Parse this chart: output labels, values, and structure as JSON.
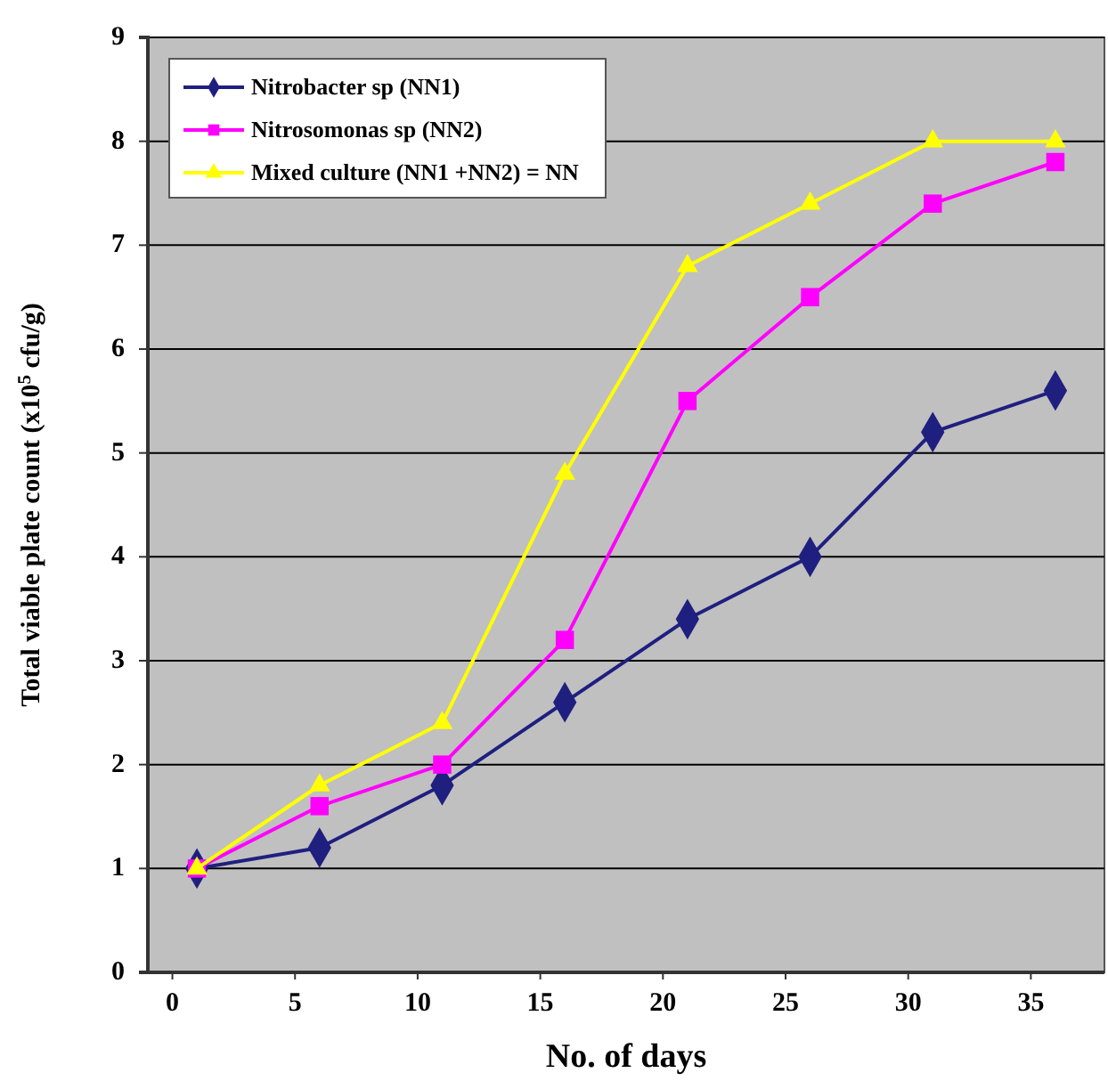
{
  "chart_data": {
    "type": "line",
    "xlabel": "No. of days",
    "ylabel": "Total viable plate count (x10$^{5}$ cfu/g)",
    "x": [
      1,
      6,
      11,
      16,
      21,
      26,
      31,
      36
    ],
    "xlim": [
      -1,
      38
    ],
    "xticks": [
      0,
      5,
      10,
      15,
      20,
      25,
      30,
      35
    ],
    "ylim": [
      0,
      9
    ],
    "yticks": [
      0,
      1,
      2,
      3,
      4,
      5,
      6,
      7,
      8,
      9
    ],
    "grid": "y",
    "legend": "top left",
    "series": [
      {
        "name": "Nitrobacter sp (NN1)",
        "color": "#1f1f80",
        "marker": "diamond",
        "values": [
          1,
          1.2,
          1.8,
          2.6,
          3.4,
          4.0,
          5.2,
          5.6
        ]
      },
      {
        "name": "Nitrosomonas sp  (NN2)",
        "color": "#ff00ff",
        "marker": "square",
        "values": [
          1,
          1.6,
          2.0,
          3.2,
          5.5,
          6.5,
          7.4,
          7.8
        ]
      },
      {
        "name": "Mixed culture (NN1 +NN2) = NN",
        "color": "#ffff00",
        "marker": "triangle",
        "values": [
          1,
          1.8,
          2.4,
          4.8,
          6.8,
          7.4,
          8.0,
          8.0
        ]
      }
    ]
  }
}
